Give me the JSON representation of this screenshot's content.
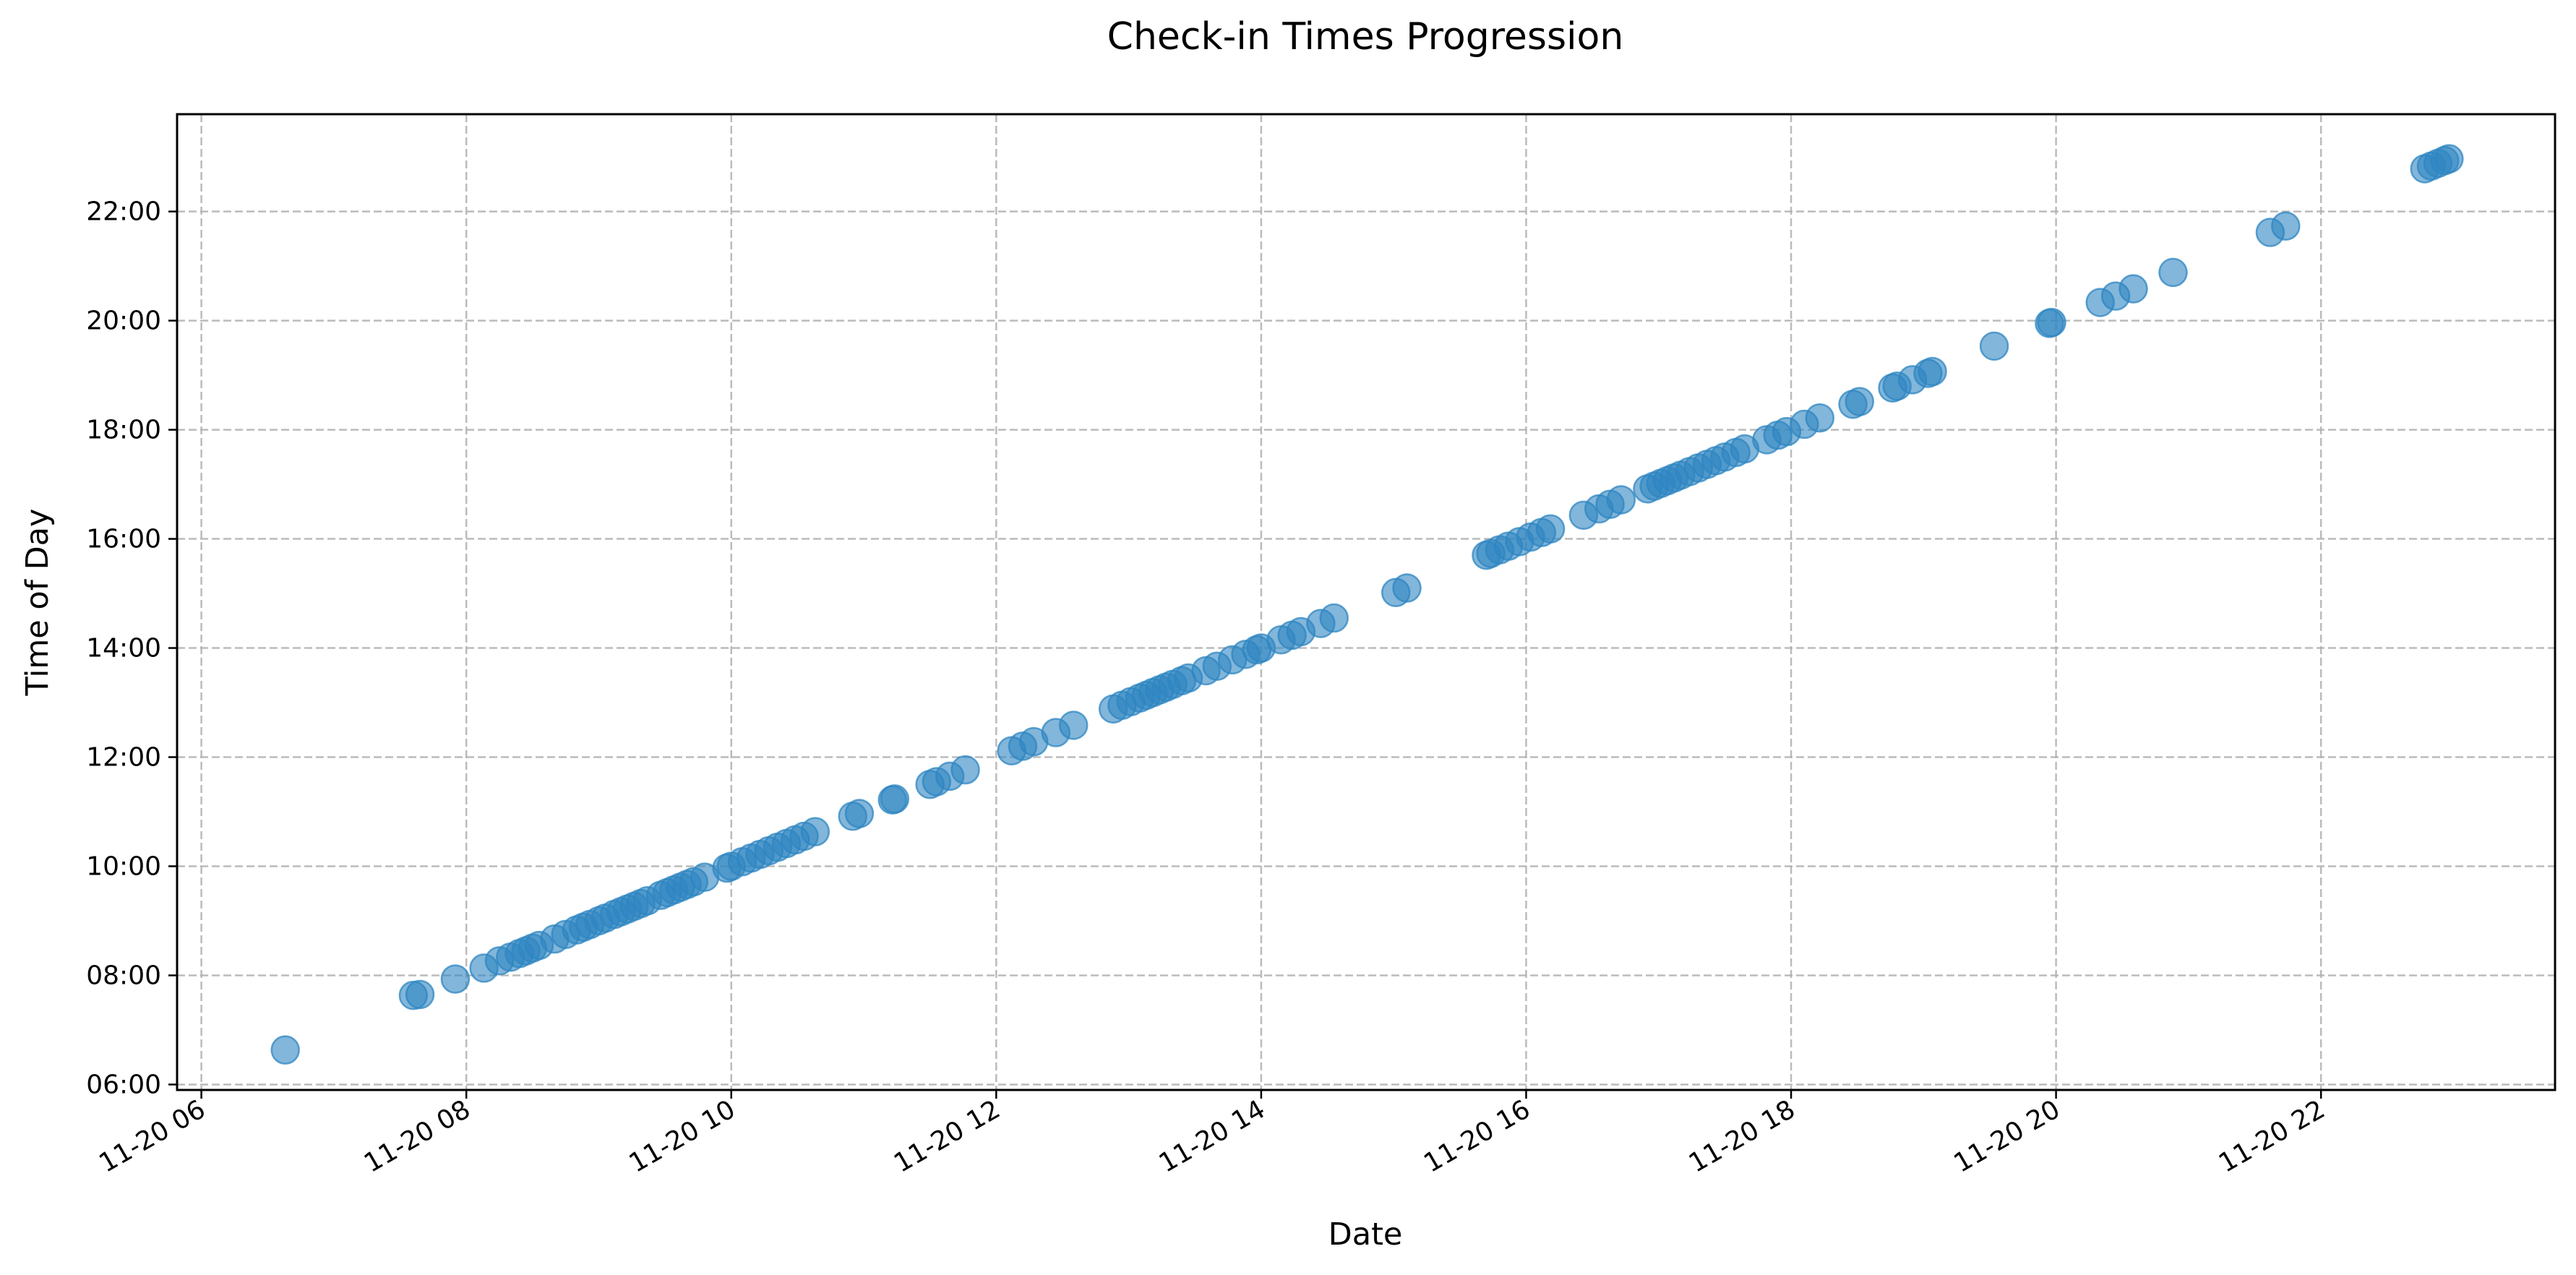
{
  "colors": {
    "point": "#1f77b4",
    "point_fill": "#2e86c1",
    "background": "#ffffff",
    "frame": "#000000",
    "grid": "#b0b0b0"
  },
  "chart_data": {
    "type": "scatter",
    "title": "Check-in Times Progression",
    "xlabel": "Date",
    "ylabel": "Time of Day",
    "grid": true,
    "x_tick_labels": [
      "11-20 06",
      "11-20 08",
      "11-20 10",
      "11-20 12",
      "11-20 14",
      "11-20 16",
      "11-20 18",
      "11-20 20",
      "11-20 22"
    ],
    "y_tick_labels": [
      "06:00",
      "08:00",
      "10:00",
      "12:00",
      "14:00",
      "16:00",
      "18:00",
      "20:00",
      "22:00"
    ],
    "x_range": [
      "11-20 05:49",
      "11-20 23:46"
    ],
    "y_range": [
      "05:54",
      "23:47"
    ],
    "points": [
      [
        "11-20 06:38",
        "06:38"
      ],
      [
        "11-20 07:36",
        "07:38"
      ],
      [
        "11-20 07:39",
        "07:39"
      ],
      [
        "11-20 07:55",
        "07:56"
      ],
      [
        "11-20 08:08",
        "08:08"
      ],
      [
        "11-20 08:15",
        "08:16"
      ],
      [
        "11-20 08:20",
        "08:20"
      ],
      [
        "11-20 08:24",
        "08:24"
      ],
      [
        "11-20 08:27",
        "08:27"
      ],
      [
        "11-20 08:30",
        "08:30"
      ],
      [
        "11-20 08:33",
        "08:33"
      ],
      [
        "11-20 08:40",
        "08:40"
      ],
      [
        "11-20 08:45",
        "08:45"
      ],
      [
        "11-20 08:50",
        "08:50"
      ],
      [
        "11-20 08:53",
        "08:53"
      ],
      [
        "11-20 08:56",
        "08:56"
      ],
      [
        "11-20 09:00",
        "09:00"
      ],
      [
        "11-20 09:03",
        "09:03"
      ],
      [
        "11-20 09:07",
        "09:07"
      ],
      [
        "11-20 09:10",
        "09:10"
      ],
      [
        "11-20 09:13",
        "09:13"
      ],
      [
        "11-20 09:16",
        "09:16"
      ],
      [
        "11-20 09:19",
        "09:19"
      ],
      [
        "11-20 09:22",
        "09:22"
      ],
      [
        "11-20 09:28",
        "09:28"
      ],
      [
        "11-20 09:31",
        "09:31"
      ],
      [
        "11-20 09:34",
        "09:34"
      ],
      [
        "11-20 09:37",
        "09:37"
      ],
      [
        "11-20 09:40",
        "09:40"
      ],
      [
        "11-20 09:43",
        "09:43"
      ],
      [
        "11-20 09:48",
        "09:48"
      ],
      [
        "11-20 09:58",
        "09:58"
      ],
      [
        "11-20 10:00",
        "10:00"
      ],
      [
        "11-20 10:05",
        "10:05"
      ],
      [
        "11-20 10:09",
        "10:09"
      ],
      [
        "11-20 10:13",
        "10:13"
      ],
      [
        "11-20 10:17",
        "10:17"
      ],
      [
        "11-20 10:21",
        "10:21"
      ],
      [
        "11-20 10:25",
        "10:25"
      ],
      [
        "11-20 10:29",
        "10:29"
      ],
      [
        "11-20 10:33",
        "10:33"
      ],
      [
        "11-20 10:38",
        "10:38"
      ],
      [
        "11-20 10:55",
        "10:55"
      ],
      [
        "11-20 10:58",
        "10:58"
      ],
      [
        "11-20 11:13",
        "11:13"
      ],
      [
        "11-20 11:14",
        "11:14"
      ],
      [
        "11-20 11:30",
        "11:30"
      ],
      [
        "11-20 11:33",
        "11:33"
      ],
      [
        "11-20 11:39",
        "11:39"
      ],
      [
        "11-20 11:46",
        "11:46"
      ],
      [
        "11-20 12:07",
        "12:07"
      ],
      [
        "11-20 12:12",
        "12:12"
      ],
      [
        "11-20 12:17",
        "12:17"
      ],
      [
        "11-20 12:27",
        "12:27"
      ],
      [
        "11-20 12:35",
        "12:35"
      ],
      [
        "11-20 12:53",
        "12:53"
      ],
      [
        "11-20 12:57",
        "12:57"
      ],
      [
        "11-20 13:01",
        "13:01"
      ],
      [
        "11-20 13:05",
        "13:05"
      ],
      [
        "11-20 13:08",
        "13:08"
      ],
      [
        "11-20 13:11",
        "13:11"
      ],
      [
        "11-20 13:14",
        "13:14"
      ],
      [
        "11-20 13:17",
        "13:17"
      ],
      [
        "11-20 13:20",
        "13:20"
      ],
      [
        "11-20 13:24",
        "13:24"
      ],
      [
        "11-20 13:27",
        "13:27"
      ],
      [
        "11-20 13:35",
        "13:35"
      ],
      [
        "11-20 13:40",
        "13:40"
      ],
      [
        "11-20 13:47",
        "13:47"
      ],
      [
        "11-20 13:53",
        "13:53"
      ],
      [
        "11-20 13:58",
        "13:58"
      ],
      [
        "11-20 14:00",
        "14:00"
      ],
      [
        "11-20 14:09",
        "14:09"
      ],
      [
        "11-20 14:14",
        "14:14"
      ],
      [
        "11-20 14:18",
        "14:18"
      ],
      [
        "11-20 14:27",
        "14:27"
      ],
      [
        "11-20 14:33",
        "14:33"
      ],
      [
        "11-20 15:01",
        "15:01"
      ],
      [
        "11-20 15:06",
        "15:06"
      ],
      [
        "11-20 15:42",
        "15:42"
      ],
      [
        "11-20 15:44",
        "15:44"
      ],
      [
        "11-20 15:48",
        "15:48"
      ],
      [
        "11-20 15:52",
        "15:52"
      ],
      [
        "11-20 15:57",
        "15:57"
      ],
      [
        "11-20 16:02",
        "16:02"
      ],
      [
        "11-20 16:07",
        "16:07"
      ],
      [
        "11-20 16:11",
        "16:11"
      ],
      [
        "11-20 16:26",
        "16:26"
      ],
      [
        "11-20 16:33",
        "16:33"
      ],
      [
        "11-20 16:38",
        "16:38"
      ],
      [
        "11-20 16:43",
        "16:43"
      ],
      [
        "11-20 16:55",
        "16:55"
      ],
      [
        "11-20 16:58",
        "16:58"
      ],
      [
        "11-20 17:01",
        "17:01"
      ],
      [
        "11-20 17:04",
        "17:04"
      ],
      [
        "11-20 17:07",
        "17:07"
      ],
      [
        "11-20 17:10",
        "17:10"
      ],
      [
        "11-20 17:14",
        "17:14"
      ],
      [
        "11-20 17:18",
        "17:18"
      ],
      [
        "11-20 17:22",
        "17:22"
      ],
      [
        "11-20 17:26",
        "17:26"
      ],
      [
        "11-20 17:30",
        "17:30"
      ],
      [
        "11-20 17:35",
        "17:35"
      ],
      [
        "11-20 17:39",
        "17:39"
      ],
      [
        "11-20 17:49",
        "17:49"
      ],
      [
        "11-20 17:54",
        "17:54"
      ],
      [
        "11-20 17:58",
        "17:58"
      ],
      [
        "11-20 18:06",
        "18:06"
      ],
      [
        "11-20 18:13",
        "18:13"
      ],
      [
        "11-20 18:28",
        "18:28"
      ],
      [
        "11-20 18:31",
        "18:31"
      ],
      [
        "11-20 18:46",
        "18:46"
      ],
      [
        "11-20 18:48",
        "18:48"
      ],
      [
        "11-20 18:55",
        "18:55"
      ],
      [
        "11-20 19:02",
        "19:02"
      ],
      [
        "11-20 19:04",
        "19:04"
      ],
      [
        "11-20 19:32",
        "19:32"
      ],
      [
        "11-20 19:57",
        "19:57"
      ],
      [
        "11-20 19:58",
        "19:58"
      ],
      [
        "11-20 20:20",
        "20:20"
      ],
      [
        "11-20 20:27",
        "20:27"
      ],
      [
        "11-20 20:35",
        "20:35"
      ],
      [
        "11-20 20:53",
        "20:53"
      ],
      [
        "11-20 21:37",
        "21:37"
      ],
      [
        "11-20 21:44",
        "21:44"
      ],
      [
        "11-20 22:47",
        "22:47"
      ],
      [
        "11-20 22:50",
        "22:50"
      ],
      [
        "11-20 22:53",
        "22:53"
      ],
      [
        "11-20 22:56",
        "22:56"
      ],
      [
        "11-20 22:58",
        "22:58"
      ]
    ]
  }
}
